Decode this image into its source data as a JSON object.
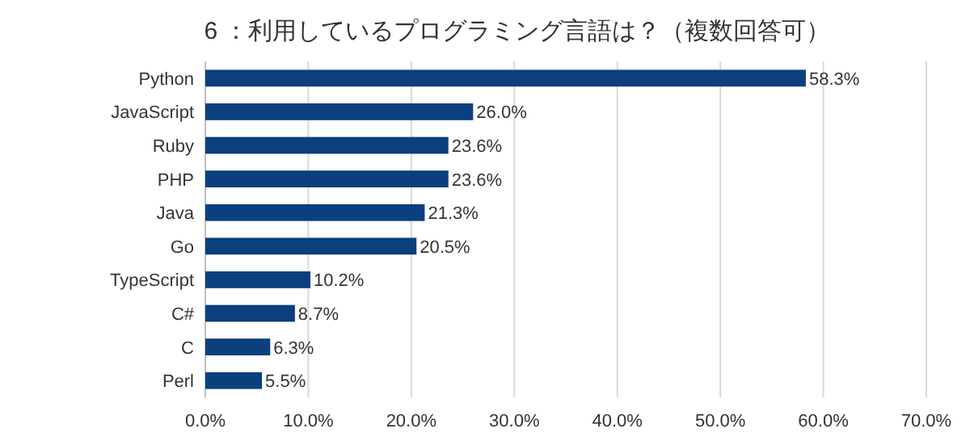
{
  "chart_data": {
    "type": "bar",
    "orientation": "horizontal",
    "title": "6 ：利用しているプログラミング言語は？（複数回答可）",
    "categories": [
      "Python",
      "JavaScript",
      "Ruby",
      "PHP",
      "Java",
      "Go",
      "TypeScript",
      "C#",
      "C",
      "Perl"
    ],
    "values": [
      58.3,
      26.0,
      23.6,
      23.6,
      21.3,
      20.5,
      10.2,
      8.7,
      6.3,
      5.5
    ],
    "value_labels": [
      "58.3%",
      "26.0%",
      "23.6%",
      "23.6%",
      "21.3%",
      "20.5%",
      "10.2%",
      "8.7%",
      "6.3%",
      "5.5%"
    ],
    "color": "#0b3f7e",
    "xlim": [
      0,
      70
    ],
    "xticks": [
      {
        "value": 0,
        "label": "0.0%"
      },
      {
        "value": 10,
        "label": "10.0%"
      },
      {
        "value": 20,
        "label": "20.0%"
      },
      {
        "value": 30,
        "label": "30.0%"
      },
      {
        "value": 40,
        "label": "40.0%"
      },
      {
        "value": 50,
        "label": "50.0%"
      },
      {
        "value": 60,
        "label": "60.0%"
      },
      {
        "value": 70,
        "label": "70.0%"
      }
    ],
    "grid": "x"
  }
}
